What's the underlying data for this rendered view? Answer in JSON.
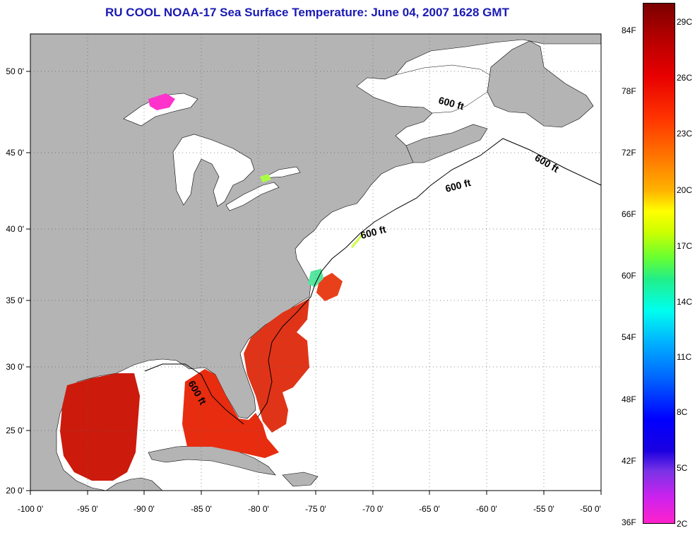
{
  "title": "RU COOL  NOAA-17  Sea Surface Temperature:  June 04, 2007 1628 GMT",
  "x_ticks": [
    "-100 0'",
    "-95 0'",
    "-90 0'",
    "-85 0'",
    "-80 0'",
    "-75 0'",
    "-70 0'",
    "-65 0'",
    "-60 0'",
    "-55 0'",
    "-50 0'"
  ],
  "y_ticks": [
    "50 0'",
    "45 0'",
    "40 0'",
    "35 0'",
    "30 0'",
    "25 0'",
    "20 0'"
  ],
  "contour_labels": [
    "600 ft",
    "600 ft",
    "600 ft",
    "600 ft",
    "600 ft"
  ],
  "colorbar": {
    "fahrenheit": [
      "84F",
      "78F",
      "72F",
      "66F",
      "60F",
      "54F",
      "48F",
      "42F",
      "36F"
    ],
    "celsius": [
      "29C",
      "26C",
      "23C",
      "20C",
      "17C",
      "14C",
      "11C",
      "8C",
      "5C",
      "2C"
    ]
  },
  "colors": {
    "land": "#b4b4b4",
    "no_data": "#ffffff",
    "title": "#1a1ab4",
    "warm_sst": "#e02810"
  }
}
